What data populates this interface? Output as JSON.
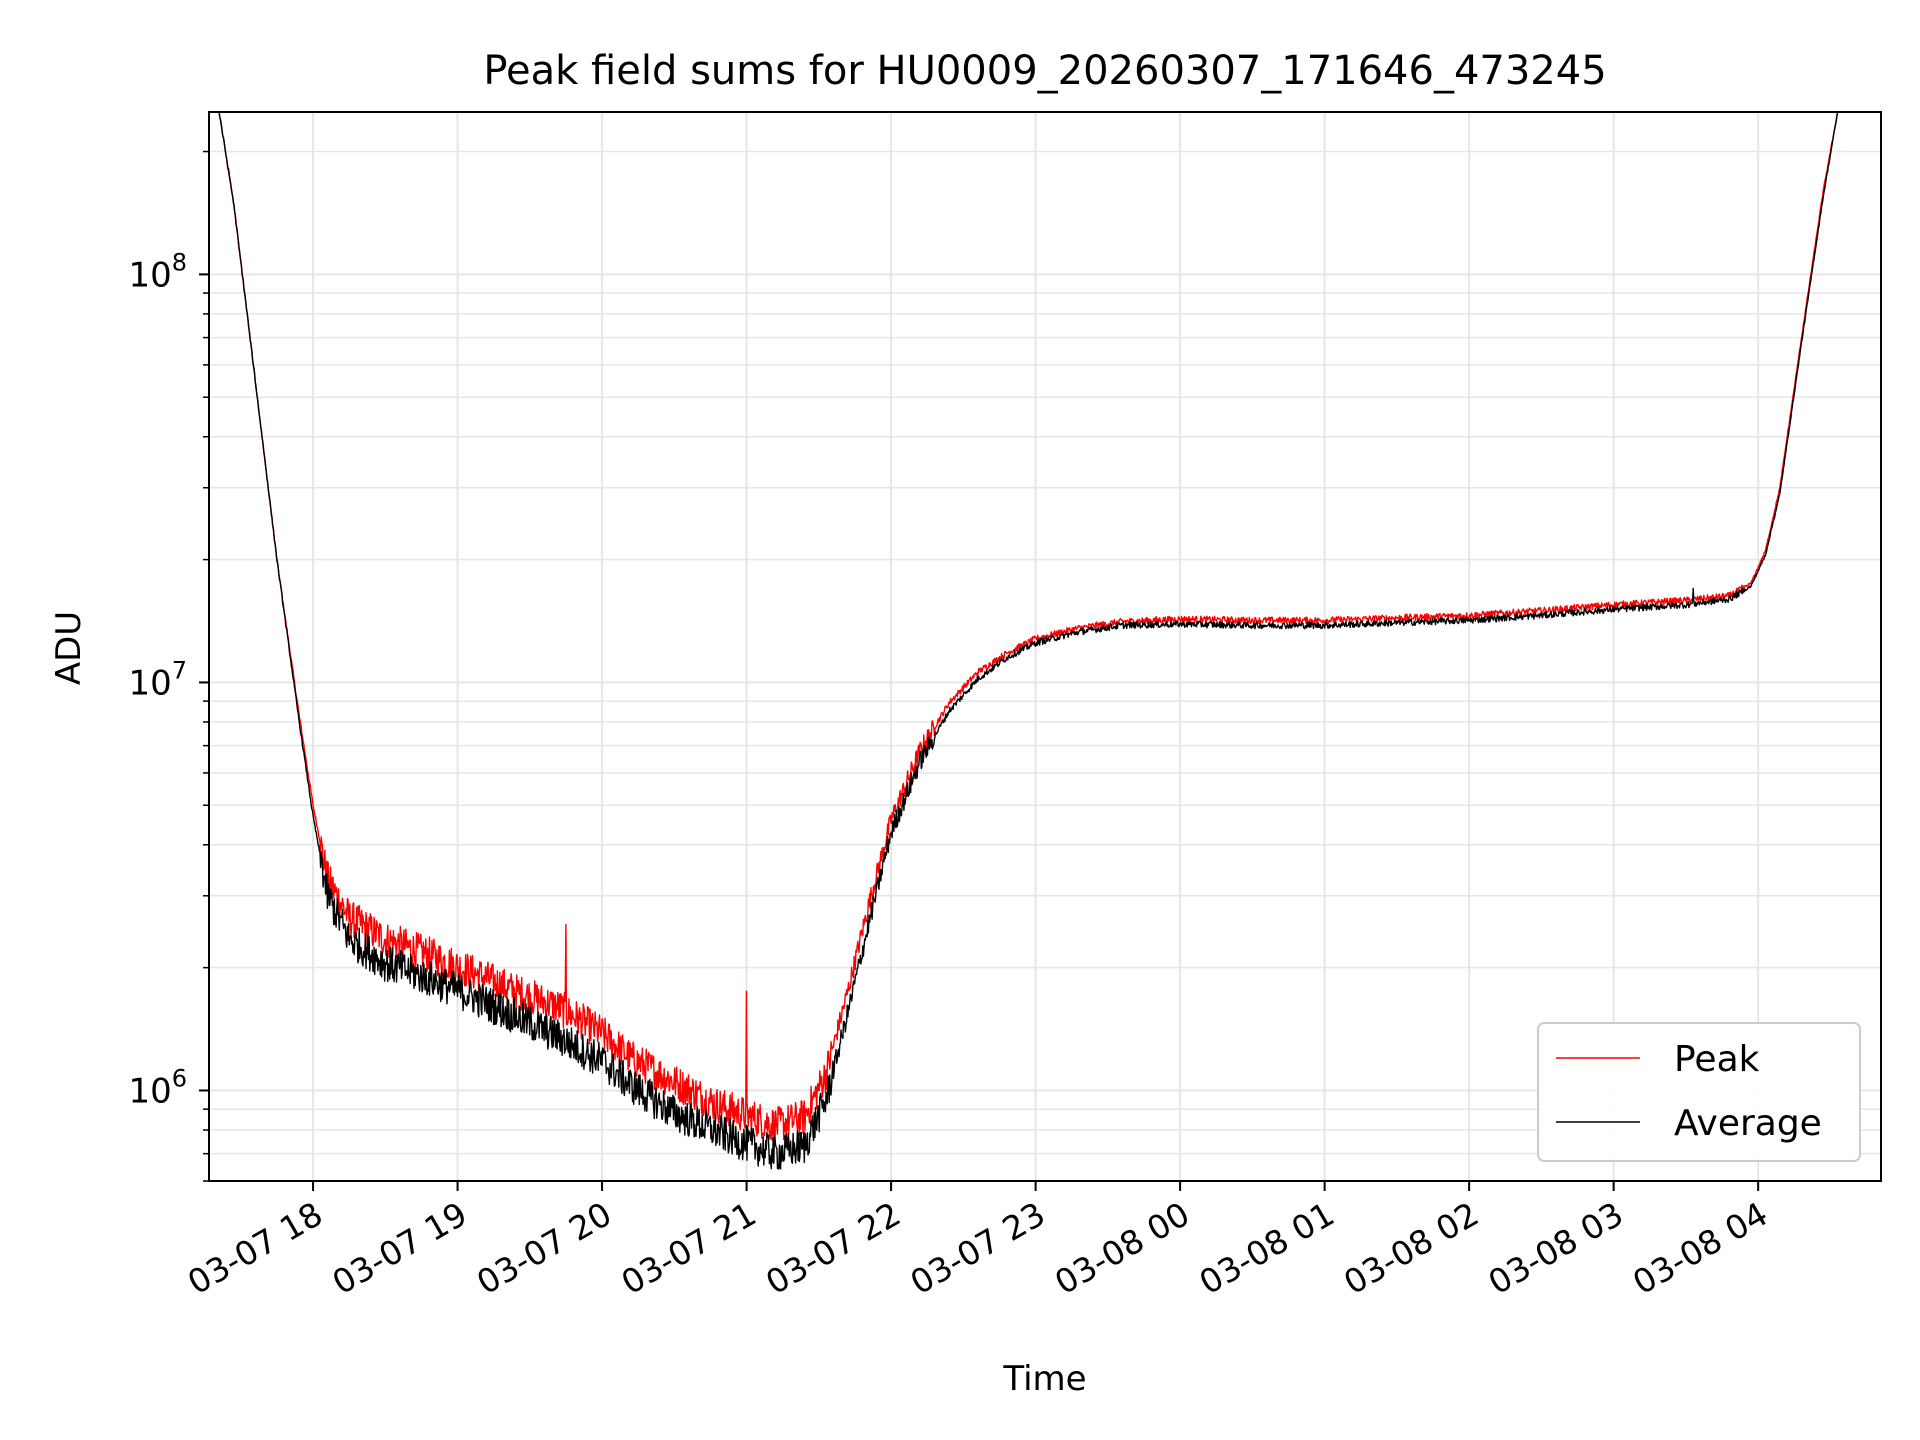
{
  "chart_data": {
    "type": "line",
    "title": "Peak field sums for HU0009_20260307_171646_473245",
    "xlabel": "Time",
    "ylabel": "ADU",
    "y_scale": "log",
    "ylim": [
      600000,
      250000000
    ],
    "xlim_hours": [
      17.28,
      28.85
    ],
    "grid": "on (major and minor)",
    "legend_position": "lower-right",
    "x_ticks": [
      {
        "hour": 18,
        "label": "03-07 18"
      },
      {
        "hour": 19,
        "label": "03-07 19"
      },
      {
        "hour": 20,
        "label": "03-07 20"
      },
      {
        "hour": 21,
        "label": "03-07 21"
      },
      {
        "hour": 22,
        "label": "03-07 22"
      },
      {
        "hour": 23,
        "label": "03-07 23"
      },
      {
        "hour": 24,
        "label": "03-08 00"
      },
      {
        "hour": 25,
        "label": "03-08 01"
      },
      {
        "hour": 26,
        "label": "03-08 02"
      },
      {
        "hour": 27,
        "label": "03-08 03"
      },
      {
        "hour": 28,
        "label": "03-08 04"
      }
    ],
    "y_ticks": [
      {
        "value": 1000000,
        "base": "10",
        "exp": "6"
      },
      {
        "value": 10000000,
        "base": "10",
        "exp": "7"
      },
      {
        "value": 100000000,
        "base": "10",
        "exp": "8"
      }
    ],
    "series": [
      {
        "name": "Peak",
        "color": "#ff0000",
        "points_hour_adu": [
          [
            17.35,
            250000000
          ],
          [
            17.45,
            150000000
          ],
          [
            17.6,
            55000000
          ],
          [
            17.75,
            20000000
          ],
          [
            17.9,
            8500000
          ],
          [
            18.0,
            5000000
          ],
          [
            18.1,
            3300000
          ],
          [
            18.25,
            2650000
          ],
          [
            18.5,
            2350000
          ],
          [
            18.8,
            2150000
          ],
          [
            19.1,
            1950000
          ],
          [
            19.4,
            1750000
          ],
          [
            19.7,
            1600000
          ],
          [
            20.0,
            1380000
          ],
          [
            20.2,
            1200000
          ],
          [
            20.5,
            1050000
          ],
          [
            20.8,
            920000
          ],
          [
            21.0,
            870000
          ],
          [
            21.2,
            820000
          ],
          [
            21.4,
            860000
          ],
          [
            21.55,
            1100000
          ],
          [
            21.7,
            1750000
          ],
          [
            21.85,
            2900000
          ],
          [
            22.0,
            4600000
          ],
          [
            22.2,
            6800000
          ],
          [
            22.4,
            8900000
          ],
          [
            22.6,
            10600000
          ],
          [
            22.8,
            11800000
          ],
          [
            23.0,
            12800000
          ],
          [
            23.3,
            13600000
          ],
          [
            23.6,
            14100000
          ],
          [
            24.0,
            14300000
          ],
          [
            24.5,
            14200000
          ],
          [
            25.0,
            14200000
          ],
          [
            25.5,
            14400000
          ],
          [
            26.0,
            14600000
          ],
          [
            26.5,
            15000000
          ],
          [
            27.0,
            15500000
          ],
          [
            27.5,
            15900000
          ],
          [
            27.8,
            16300000
          ],
          [
            27.95,
            17500000
          ],
          [
            28.05,
            21000000
          ],
          [
            28.15,
            30000000
          ],
          [
            28.3,
            70000000
          ],
          [
            28.45,
            160000000
          ],
          [
            28.55,
            250000000
          ]
        ]
      },
      {
        "name": "Average",
        "color": "#000000",
        "points_hour_adu": [
          [
            17.35,
            250000000
          ],
          [
            17.45,
            150000000
          ],
          [
            17.6,
            55000000
          ],
          [
            17.75,
            20000000
          ],
          [
            17.9,
            8200000
          ],
          [
            18.0,
            4700000
          ],
          [
            18.1,
            3000000
          ],
          [
            18.25,
            2350000
          ],
          [
            18.5,
            2050000
          ],
          [
            18.8,
            1880000
          ],
          [
            19.1,
            1700000
          ],
          [
            19.4,
            1520000
          ],
          [
            19.7,
            1350000
          ],
          [
            20.0,
            1180000
          ],
          [
            20.2,
            1030000
          ],
          [
            20.5,
            880000
          ],
          [
            20.8,
            790000
          ],
          [
            21.0,
            740000
          ],
          [
            21.2,
            700000
          ],
          [
            21.4,
            730000
          ],
          [
            21.55,
            950000
          ],
          [
            21.7,
            1550000
          ],
          [
            21.85,
            2600000
          ],
          [
            22.0,
            4300000
          ],
          [
            22.2,
            6400000
          ],
          [
            22.4,
            8500000
          ],
          [
            22.6,
            10200000
          ],
          [
            22.8,
            11500000
          ],
          [
            23.0,
            12500000
          ],
          [
            23.3,
            13300000
          ],
          [
            23.6,
            13800000
          ],
          [
            24.0,
            13900000
          ],
          [
            24.5,
            13800000
          ],
          [
            25.0,
            13800000
          ],
          [
            25.5,
            14000000
          ],
          [
            26.0,
            14200000
          ],
          [
            26.5,
            14600000
          ],
          [
            27.0,
            15100000
          ],
          [
            27.5,
            15500000
          ],
          [
            27.8,
            16000000
          ],
          [
            27.95,
            17200000
          ],
          [
            28.05,
            20500000
          ],
          [
            28.15,
            29000000
          ],
          [
            28.3,
            68000000
          ],
          [
            28.45,
            155000000
          ],
          [
            28.55,
            250000000
          ]
        ]
      }
    ],
    "spikes_hour_adu": [
      {
        "series": "Peak",
        "hour": 19.75,
        "value": 2550000
      },
      {
        "series": "Peak",
        "hour": 21.0,
        "value": 1750000
      },
      {
        "series": "Average",
        "hour": 27.55,
        "value": 17000000
      }
    ]
  }
}
